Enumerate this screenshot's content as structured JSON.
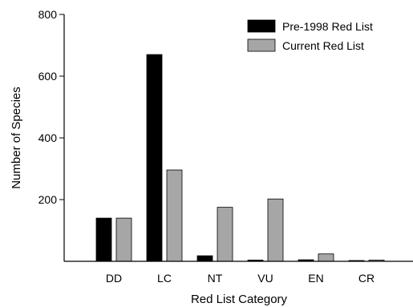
{
  "chart_data": {
    "type": "bar",
    "title": "",
    "xlabel": "Red List Category",
    "ylabel": "Number of Species",
    "categories": [
      "DD",
      "LC",
      "NT",
      "VU",
      "EN",
      "CR"
    ],
    "series": [
      {
        "name": "Pre-1998 Red List",
        "color": "#000000",
        "values": [
          140,
          670,
          18,
          4,
          5,
          2
        ]
      },
      {
        "name": "Current Red List",
        "color": "#a6a6a6",
        "values": [
          140,
          296,
          175,
          202,
          24,
          4
        ]
      }
    ],
    "ylim": [
      0,
      800
    ],
    "yticks": [
      200,
      400,
      600,
      800
    ],
    "grid": false,
    "legend_position": "top-right"
  }
}
